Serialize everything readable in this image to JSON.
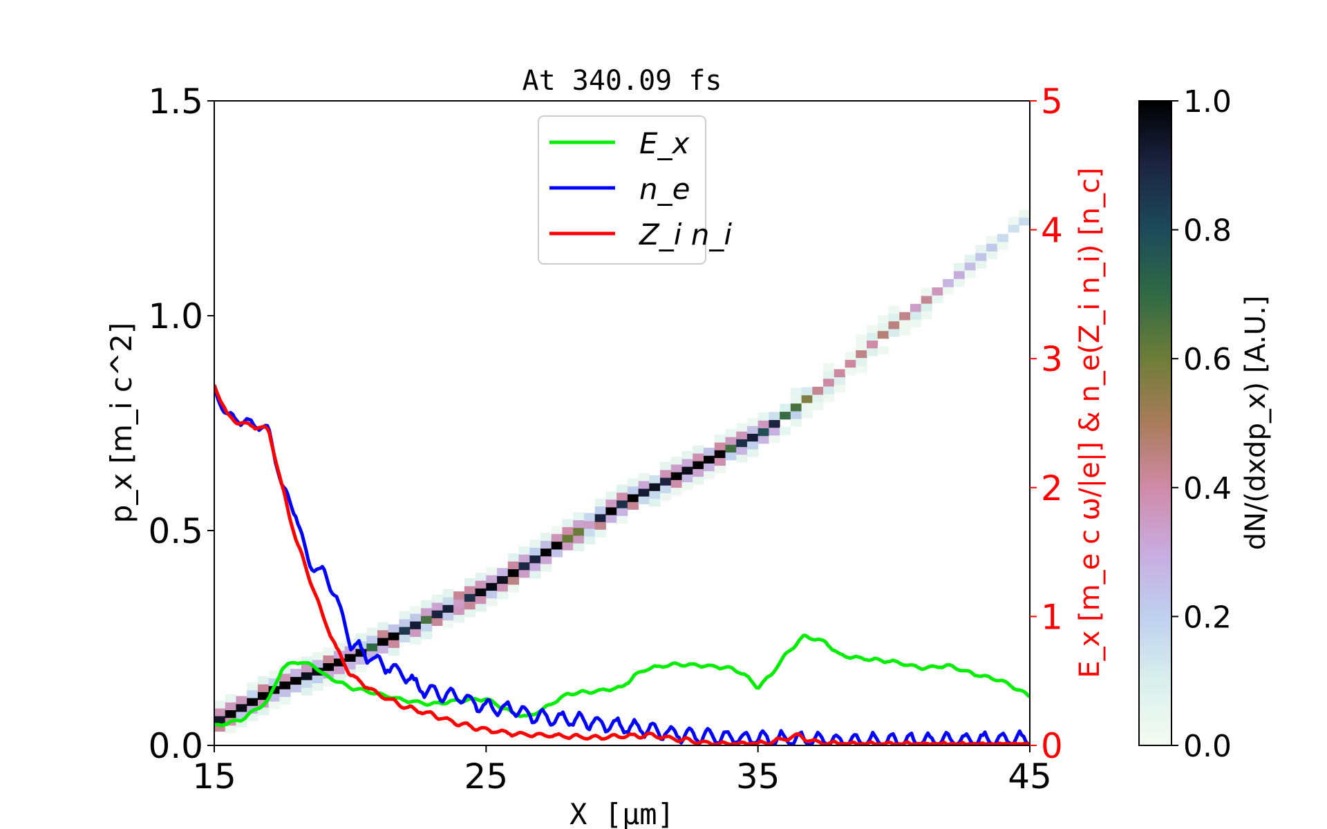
{
  "chart_data": {
    "type": "heatmap+line",
    "title": "At 340.09 fs",
    "xlabel": "X [μm]",
    "ylabel_left": "p_x [m_i c^2]",
    "ylabel_right": "E_x [m_e c ω/|e|] & n_e(Z_i n_i) [n_c]",
    "colorbar_label": "dN/(dxdp_x) [A.U.]",
    "xlim": [
      15,
      45
    ],
    "ylim_left": [
      0,
      1.5
    ],
    "ylim_right": [
      0,
      5
    ],
    "clim": [
      0,
      1
    ],
    "x_ticks": [
      "15",
      "25",
      "35",
      "45"
    ],
    "y_ticks_left": [
      "0.0",
      "0.5",
      "1.0",
      "1.5"
    ],
    "y_ticks_right": [
      "0",
      "1",
      "2",
      "3",
      "4",
      "5"
    ],
    "colorbar_ticks": [
      "0.0",
      "0.2",
      "0.4",
      "0.6",
      "0.8",
      "1.0"
    ],
    "colormap": "cubehelix_r",
    "right_axis_color": "#ff0000",
    "legend": {
      "placement": "upper center",
      "entries": [
        "E_x",
        "n_e",
        "Z_i n_i"
      ]
    },
    "phase_space_ridge": [
      [
        15,
        0.05
      ],
      [
        17,
        0.12
      ],
      [
        20,
        0.2
      ],
      [
        22.5,
        0.28
      ],
      [
        25,
        0.36
      ],
      [
        27.5,
        0.46
      ],
      [
        30,
        0.56
      ],
      [
        32.5,
        0.64
      ],
      [
        35,
        0.72
      ],
      [
        37.5,
        0.84
      ],
      [
        40,
        0.98
      ],
      [
        42.5,
        1.1
      ],
      [
        44.5,
        1.21
      ]
    ],
    "phase_space_intensity": [
      [
        15,
        1.0
      ],
      [
        30,
        1.0
      ],
      [
        33,
        0.95
      ],
      [
        35,
        0.85
      ],
      [
        36.5,
        0.7
      ],
      [
        37,
        0.4
      ],
      [
        38,
        0.4
      ],
      [
        40,
        0.42
      ],
      [
        41.5,
        0.35
      ],
      [
        42.5,
        0.25
      ],
      [
        43.5,
        0.2
      ],
      [
        44.5,
        0.15
      ]
    ],
    "series": [
      {
        "name": "E_x",
        "color": "#00ee00",
        "x": [
          15,
          16,
          17,
          17.5,
          18,
          18.7,
          19,
          20,
          21,
          22,
          23,
          24,
          25,
          26,
          26.5,
          27,
          28,
          29,
          30,
          30.5,
          31,
          32,
          33,
          34,
          34.5,
          35,
          35.5,
          36,
          36.7,
          37.5,
          38,
          39,
          40,
          41,
          42,
          43,
          44,
          45
        ],
        "y": [
          0.15,
          0.2,
          0.35,
          0.6,
          0.65,
          0.62,
          0.55,
          0.45,
          0.4,
          0.35,
          0.32,
          0.35,
          0.36,
          0.25,
          0.22,
          0.27,
          0.4,
          0.42,
          0.45,
          0.55,
          0.6,
          0.63,
          0.62,
          0.6,
          0.55,
          0.45,
          0.55,
          0.7,
          0.85,
          0.8,
          0.7,
          0.67,
          0.65,
          0.6,
          0.62,
          0.55,
          0.5,
          0.38
        ]
      },
      {
        "name": "n_e",
        "color": "#0000ff",
        "x": [
          15,
          15.5,
          16,
          17,
          17.5,
          18,
          18.5,
          19,
          19.5,
          20,
          20.5,
          21,
          22,
          22.5,
          23,
          24,
          25,
          26,
          27,
          28,
          29,
          30,
          31,
          32,
          33,
          34,
          35,
          37,
          40,
          45
        ],
        "y": [
          2.75,
          2.55,
          2.52,
          2.45,
          2.0,
          1.8,
          1.4,
          1.35,
          1.15,
          0.8,
          0.72,
          0.65,
          0.55,
          0.45,
          0.42,
          0.38,
          0.3,
          0.28,
          0.22,
          0.2,
          0.18,
          0.15,
          0.12,
          0.09,
          0.07,
          0.06,
          0.05,
          0.04,
          0.03,
          0.05
        ]
      },
      {
        "name": "Z_i n_i",
        "color": "#ff0000",
        "x": [
          15,
          15.5,
          16,
          17,
          17.5,
          18,
          18.5,
          19,
          19.5,
          20,
          21,
          22,
          23,
          24,
          25,
          26,
          27,
          28,
          29,
          30,
          31,
          32,
          33,
          34,
          35,
          36,
          36.5,
          37,
          38,
          45
        ],
        "y": [
          2.8,
          2.55,
          2.5,
          2.45,
          2.0,
          1.6,
          1.3,
          1.0,
          0.75,
          0.55,
          0.4,
          0.3,
          0.24,
          0.17,
          0.12,
          0.09,
          0.08,
          0.07,
          0.06,
          0.07,
          0.08,
          0.05,
          0.02,
          0.01,
          0.01,
          0.05,
          0.08,
          0.03,
          0.01,
          0.0
        ]
      }
    ]
  }
}
